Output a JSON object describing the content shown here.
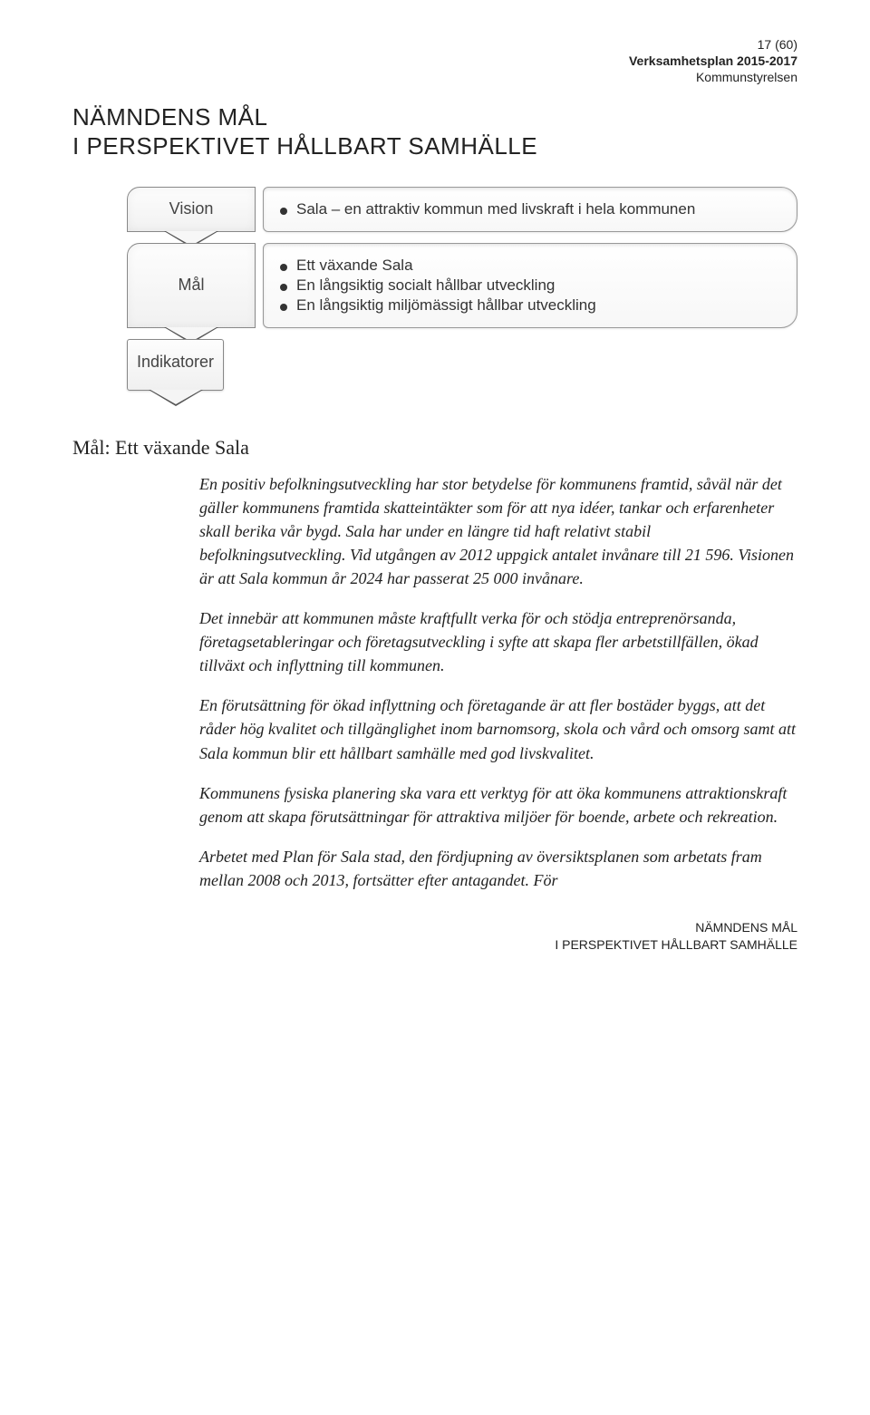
{
  "header": {
    "page_of": "17 (60)",
    "doc_title": "Verksamhetsplan 2015-2017",
    "org": "Kommunstyrelsen"
  },
  "title_line1": "NÄMNDENS MÅL",
  "title_line2": "I PERSPEKTIVET HÅLLBART SAMHÄLLE",
  "diagram": {
    "vision_label": "Vision",
    "vision_bullets": [
      "Sala – en attraktiv kommun med livskraft i hela kommunen"
    ],
    "mal_label": "Mål",
    "mal_bullets": [
      "Ett växande Sala",
      "En långsiktig socialt hållbar utveckling",
      "En långsiktig miljömässigt hållbar utveckling"
    ],
    "indikatorer_label": "Indikatorer",
    "colors": {
      "border": "#888888",
      "fill_top": "#fdfdfd",
      "fill_bottom": "#f1f1f1",
      "arrow": "#555555",
      "dot": "#333333"
    }
  },
  "section_heading": "Mål: Ett växande Sala",
  "paragraphs": [
    "En positiv befolkningsutveckling har stor betydelse för kommunens framtid, såväl när det gäller kommunens framtida skatteintäkter som för att nya idéer, tankar och erfarenheter skall berika vår bygd. Sala har under en längre tid haft relativt stabil befolkningsutveckling. Vid utgången av 2012 uppgick antalet invånare till 21 596. Visionen är att Sala kommun år 2024 har passerat 25 000 invånare.",
    "Det innebär att kommunen måste kraftfullt verka för och stödja entreprenörsanda, företagsetableringar och företagsutveckling i syfte att skapa fler arbetstillfällen, ökad tillväxt och inflyttning till kommunen.",
    "En förutsättning för ökad inflyttning och företagande är att fler bostäder byggs, att det råder hög kvalitet och tillgänglighet inom barnomsorg, skola och vård och omsorg samt att Sala kommun blir ett hållbart samhälle med god livskvalitet.",
    "Kommunens fysiska planering ska vara ett verktyg för att öka kommunens attraktionskraft genom att skapa förutsättningar för attraktiva miljöer för boende, arbete och rekreation.",
    "Arbetet med Plan för Sala stad, den fördjupning av översiktsplanen som arbetats fram mellan 2008 och 2013, fortsätter efter antagandet. För"
  ],
  "footer": {
    "l1": "NÄMNDENS MÅL",
    "l2": "I PERSPEKTIVET HÅLLBART SAMHÄLLE"
  }
}
